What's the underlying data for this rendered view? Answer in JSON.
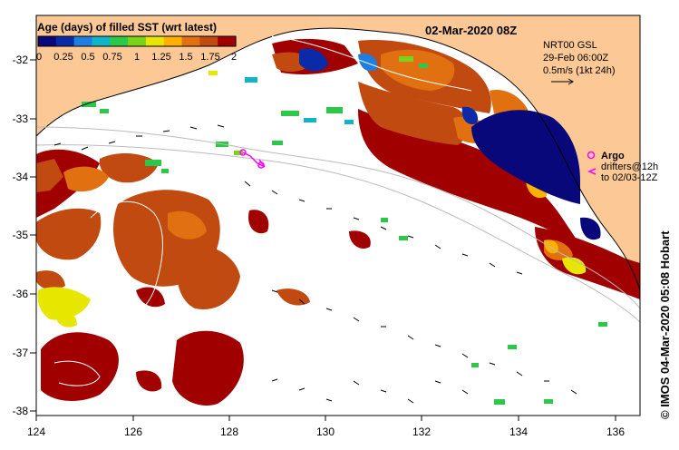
{
  "title": "02-Mar-2020 08Z",
  "colorbar": {
    "label": "Age (days) of filled SST (wrt latest)",
    "ticks": [
      "0",
      "0.25",
      "0.5",
      "0.75",
      "1",
      "1.25",
      "1.5",
      "1.75",
      "2"
    ],
    "colors": [
      "#08087a",
      "#0a2aa8",
      "#1e7fe0",
      "#10b4c8",
      "#2cc84a",
      "#7ad21c",
      "#e6e600",
      "#ffb000",
      "#e07010",
      "#c04a10",
      "#a00000"
    ]
  },
  "model_box": {
    "line1": "NRT00 GSL",
    "line2": "29-Feb 06:00Z",
    "line3": "0.5m/s (1kt 24h)"
  },
  "legend": {
    "argo_label": "Argo",
    "drifters_line1": "drifters@12h",
    "drifters_line2": "to 02/03-12Z"
  },
  "credit": "© IMOS 04-Mar-2020 05:08 Hobart",
  "axes": {
    "lon_ticks": [
      "124",
      "126",
      "128",
      "130",
      "132",
      "134",
      "136"
    ],
    "lat_ticks": [
      "-32",
      "-33",
      "-34",
      "-35",
      "-36",
      "-37",
      "-38"
    ],
    "lon_range": [
      124,
      136.5
    ],
    "lat_range": [
      -31.3,
      -38.1
    ]
  },
  "colors": {
    "land": "#fcc996",
    "ocean_missing": "#ffffff",
    "old_sst": "#a00000",
    "argo": "#ff00ff"
  }
}
